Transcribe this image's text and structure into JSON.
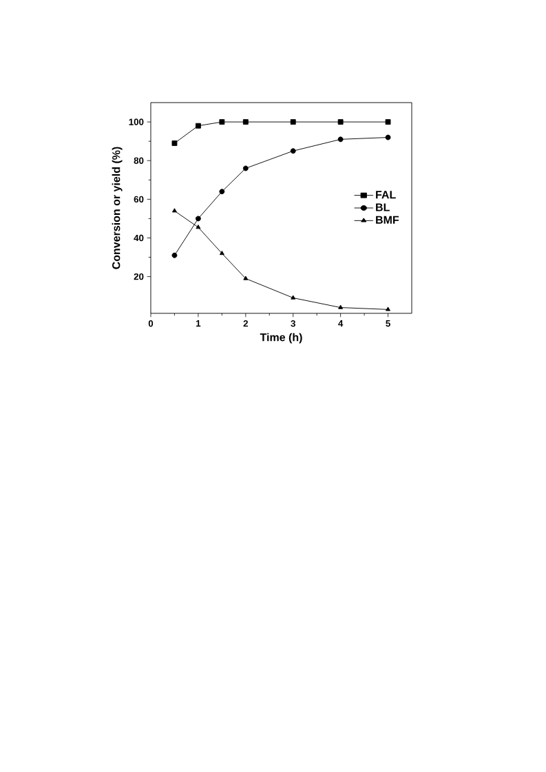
{
  "chart_data": {
    "type": "line",
    "xlabel": "Time (h)",
    "ylabel": "Conversion or yield (%)",
    "x": [
      0.5,
      1,
      1.5,
      2,
      3,
      4,
      5
    ],
    "series": [
      {
        "name": "FAL",
        "color": "#000000",
        "marker": "square",
        "values": [
          89,
          98,
          100,
          100,
          100,
          100,
          100
        ]
      },
      {
        "name": "BL",
        "color": "#000000",
        "marker": "circle",
        "values": [
          31,
          50,
          64,
          76,
          85,
          91,
          92
        ]
      },
      {
        "name": "BMF",
        "color": "#000000",
        "marker": "triangle",
        "values": [
          54,
          45.5,
          32,
          19,
          9,
          4,
          3
        ]
      }
    ],
    "xlim": [
      0,
      5.5
    ],
    "ylim": [
      1,
      110
    ],
    "xticks": [
      0,
      1,
      2,
      3,
      4,
      5
    ],
    "yticks": [
      20,
      40,
      60,
      80,
      100
    ],
    "legend": "right",
    "line_style": "solid"
  }
}
